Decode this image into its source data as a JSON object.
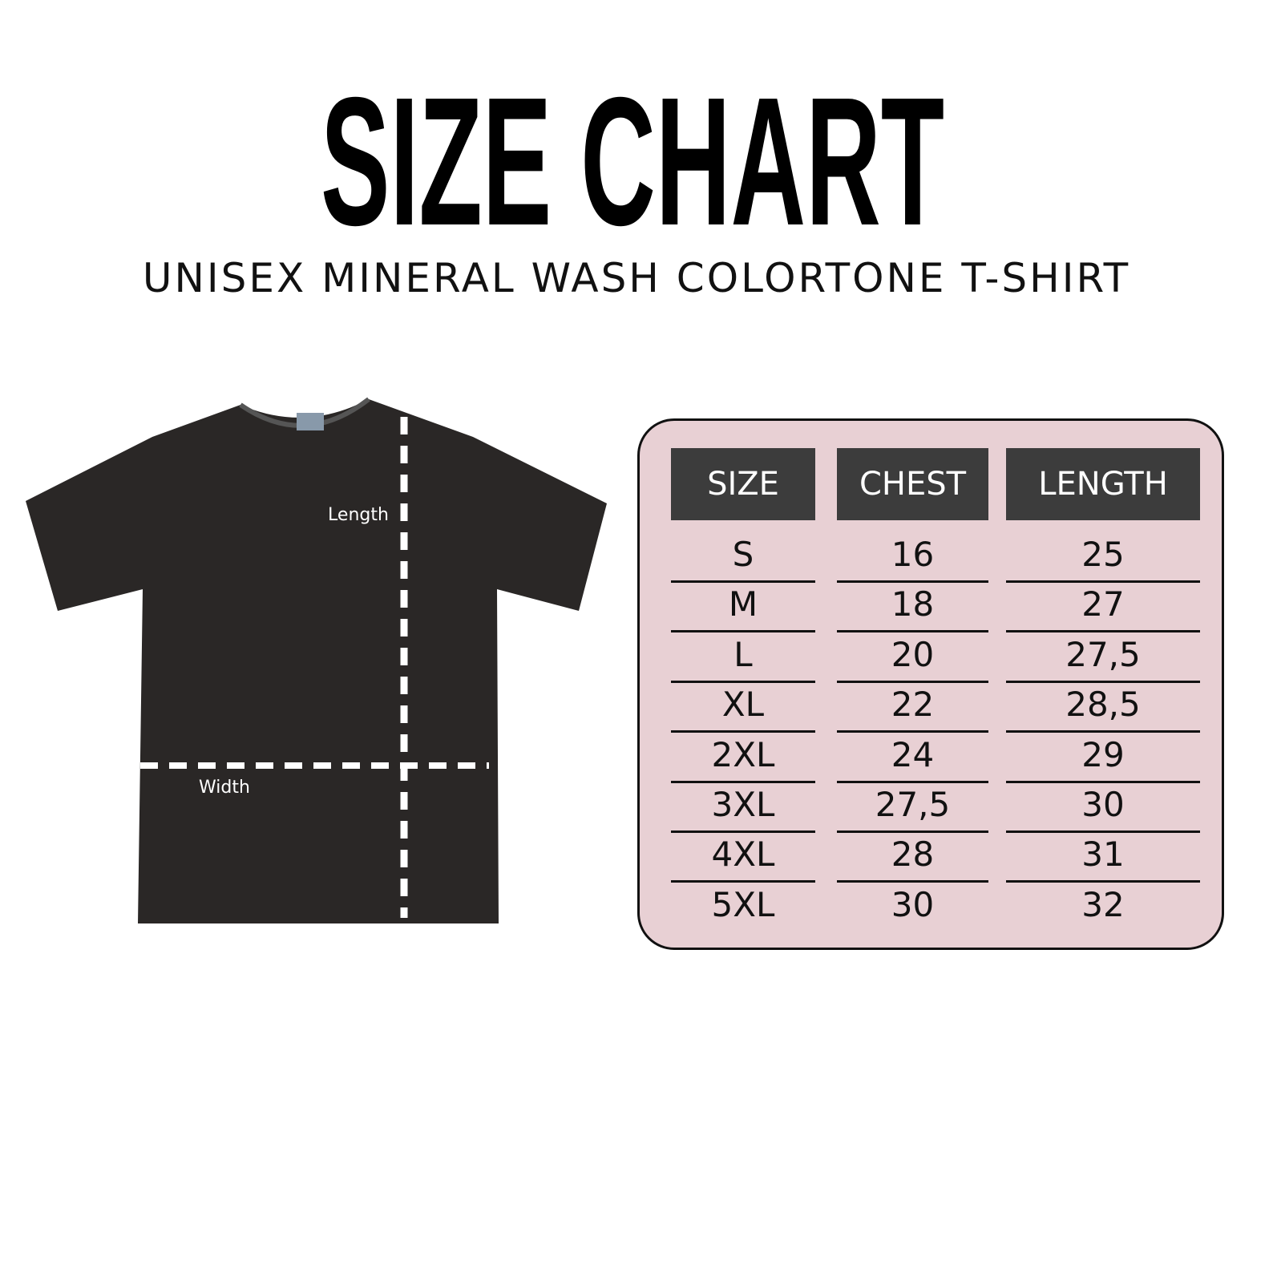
{
  "title": "SIZE CHART",
  "subtitle": "UNISEX MINERAL WASH COLORTONE T-SHIRT",
  "shirt": {
    "length_label": "Length",
    "width_label": "Width",
    "color": "#2a2726"
  },
  "table": {
    "background": "#e8d0d4",
    "header_color": "#3c3c3c",
    "headers": [
      "SIZE",
      "CHEST",
      "LENGTH"
    ],
    "rows": [
      [
        "S",
        "16",
        "25"
      ],
      [
        "M",
        "18",
        "27"
      ],
      [
        "L",
        "20",
        "27,5"
      ],
      [
        "XL",
        "22",
        "28,5"
      ],
      [
        "2XL",
        "24",
        "29"
      ],
      [
        "3XL",
        "27,5",
        "30"
      ],
      [
        "4XL",
        "28",
        "31"
      ],
      [
        "5XL",
        "30",
        "32"
      ]
    ]
  }
}
